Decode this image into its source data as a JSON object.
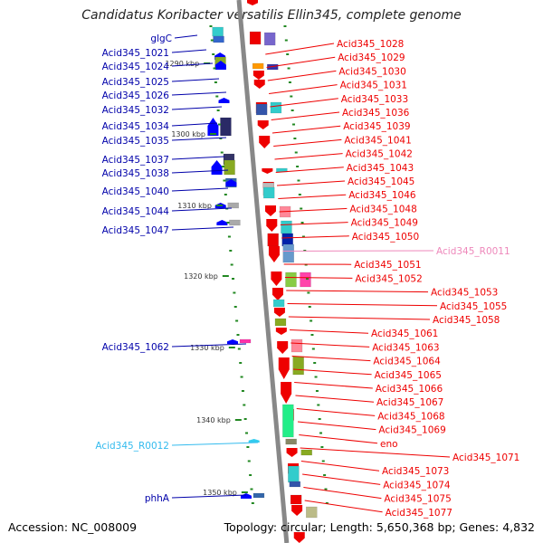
{
  "title": "Candidatus Koribacter versatilis Ellin345, complete genome",
  "footer": {
    "accession": "Accession: NC_008009",
    "info": "Topology: circular; Length: 5,650,368 bp; Genes: 4,832"
  },
  "colors": {
    "left_label": "#0000aa",
    "right_label": "#ee0000",
    "rna_left_label": "#33bbee",
    "rna_right_label": "#ee88bb",
    "backbone": "#888888",
    "tick": "#228822"
  },
  "kbp_markers": [
    "1290 kbp",
    "1300 kbp",
    "1310 kbp",
    "1320 kbp",
    "1330 kbp",
    "1340 kbp",
    "1350 kbp"
  ],
  "left_labels": [
    {
      "text": "glgC",
      "type": "gene"
    },
    {
      "text": "Acid345_1021",
      "type": "gene"
    },
    {
      "text": "Acid345_1024",
      "type": "gene"
    },
    {
      "text": "Acid345_1025",
      "type": "gene"
    },
    {
      "text": "Acid345_1026",
      "type": "gene"
    },
    {
      "text": "Acid345_1032",
      "type": "gene"
    },
    {
      "text": "Acid345_1034",
      "type": "gene"
    },
    {
      "text": "Acid345_1035",
      "type": "gene"
    },
    {
      "text": "Acid345_1037",
      "type": "gene"
    },
    {
      "text": "Acid345_1038",
      "type": "gene"
    },
    {
      "text": "Acid345_1040",
      "type": "gene"
    },
    {
      "text": "Acid345_1044",
      "type": "gene"
    },
    {
      "text": "Acid345_1047",
      "type": "gene"
    },
    {
      "text": "Acid345_1062",
      "type": "gene"
    },
    {
      "text": "Acid345_R0012",
      "type": "rna"
    },
    {
      "text": "phhA",
      "type": "gene"
    }
  ],
  "right_labels": [
    {
      "text": "Acid345_1028",
      "type": "gene"
    },
    {
      "text": "Acid345_1029",
      "type": "gene"
    },
    {
      "text": "Acid345_1030",
      "type": "gene"
    },
    {
      "text": "Acid345_1031",
      "type": "gene"
    },
    {
      "text": "Acid345_1033",
      "type": "gene"
    },
    {
      "text": "Acid345_1036",
      "type": "gene"
    },
    {
      "text": "Acid345_1039",
      "type": "gene"
    },
    {
      "text": "Acid345_1041",
      "type": "gene"
    },
    {
      "text": "Acid345_1042",
      "type": "gene"
    },
    {
      "text": "Acid345_1043",
      "type": "gene"
    },
    {
      "text": "Acid345_1045",
      "type": "gene"
    },
    {
      "text": "Acid345_1046",
      "type": "gene"
    },
    {
      "text": "Acid345_1048",
      "type": "gene"
    },
    {
      "text": "Acid345_1049",
      "type": "gene"
    },
    {
      "text": "Acid345_1050",
      "type": "gene"
    },
    {
      "text": "Acid345_R0011",
      "type": "rna"
    },
    {
      "text": "Acid345_1051",
      "type": "gene"
    },
    {
      "text": "Acid345_1052",
      "type": "gene"
    },
    {
      "text": "Acid345_1053",
      "type": "gene"
    },
    {
      "text": "Acid345_1055",
      "type": "gene"
    },
    {
      "text": "Acid345_1058",
      "type": "gene"
    },
    {
      "text": "Acid345_1061",
      "type": "gene"
    },
    {
      "text": "Acid345_1063",
      "type": "gene"
    },
    {
      "text": "Acid345_1064",
      "type": "gene"
    },
    {
      "text": "Acid345_1065",
      "type": "gene"
    },
    {
      "text": "Acid345_1066",
      "type": "gene"
    },
    {
      "text": "Acid345_1067",
      "type": "gene"
    },
    {
      "text": "Acid345_1068",
      "type": "gene"
    },
    {
      "text": "Acid345_1069",
      "type": "gene"
    },
    {
      "text": "eno",
      "type": "gene"
    },
    {
      "text": "Acid345_1071",
      "type": "gene"
    },
    {
      "text": "Acid345_1073",
      "type": "gene"
    },
    {
      "text": "Acid345_1074",
      "type": "gene"
    },
    {
      "text": "Acid345_1075",
      "type": "gene"
    },
    {
      "text": "Acid345_1077",
      "type": "gene"
    }
  ]
}
